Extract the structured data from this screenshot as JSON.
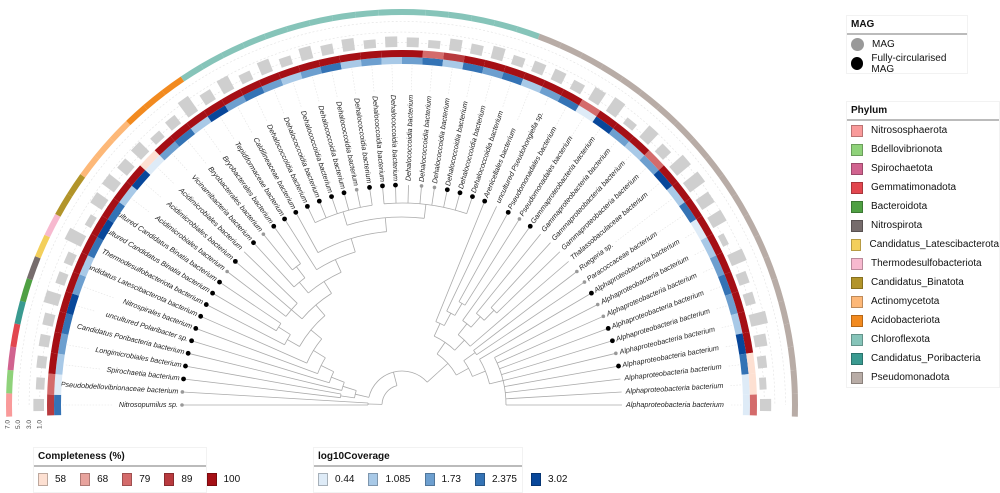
{
  "legends": {
    "mag": {
      "title": "MAG",
      "items": [
        {
          "label": "MAG",
          "color": "#999999"
        },
        {
          "label": "Fully-circularised MAG",
          "color": "#000000"
        }
      ]
    },
    "phylum": {
      "title": "Phylum",
      "items": [
        {
          "label": "Nitrososphaerota",
          "color": "#f99a9a"
        },
        {
          "label": "Bdellovibrionota",
          "color": "#8fd27a"
        },
        {
          "label": "Spirochaetota",
          "color": "#d1638f"
        },
        {
          "label": "Gemmatimonadota",
          "color": "#e2474f"
        },
        {
          "label": "Bacteroidota",
          "color": "#4fa043"
        },
        {
          "label": "Nitrospirota",
          "color": "#766c6c"
        },
        {
          "label": "Candidatus_Latescibacterota",
          "color": "#f3cf5b"
        },
        {
          "label": "Thermodesulfobacteriota",
          "color": "#f7b9cf"
        },
        {
          "label": "Candidatus_Binatota",
          "color": "#b2942a"
        },
        {
          "label": "Actinomycetota",
          "color": "#fdb878"
        },
        {
          "label": "Acidobacteriota",
          "color": "#f28a1f"
        },
        {
          "label": "Chloroflexota",
          "color": "#86c4b9"
        },
        {
          "label": "Candidatus_Poribacteria",
          "color": "#3a9a90"
        },
        {
          "label": "Pseudomonadota",
          "color": "#b8aca6"
        }
      ]
    },
    "completeness": {
      "title": "Completeness (%)",
      "items": [
        {
          "label": "58",
          "color": "#fde0d2"
        },
        {
          "label": "68",
          "color": "#e8a39d"
        },
        {
          "label": "79",
          "color": "#d46b6b"
        },
        {
          "label": "89",
          "color": "#b83a3e"
        },
        {
          "label": "100",
          "color": "#a50f15"
        }
      ]
    },
    "coverage": {
      "title": "log10Coverage",
      "items": [
        {
          "label": "0.44",
          "color": "#deebf7"
        },
        {
          "label": "1.085",
          "color": "#a8c9e7"
        },
        {
          "label": "1.73",
          "color": "#6d9fcf"
        },
        {
          "label": "2.375",
          "color": "#3473b5"
        },
        {
          "label": "3.02",
          "color": "#08479a"
        }
      ]
    }
  },
  "bar_scale_ticks": [
    "7.0",
    "5.0",
    "3.0",
    "1.0"
  ],
  "leaves": [
    {
      "name": "Nitrosopumilus sp.",
      "mag": "MAG",
      "phylum": "Nitrososphaerota",
      "completeness": 89,
      "coverage": 2.375,
      "bar": 2.2
    },
    {
      "name": "Pseudobdellovibrionaceae bacterium",
      "mag": "MAG",
      "phylum": "Bdellovibrionota",
      "completeness": 79,
      "coverage": 0.44,
      "bar": 1.8
    },
    {
      "name": "Spirochaetia bacterium",
      "mag": "Fully-circularised MAG",
      "phylum": "Spirochaetota",
      "completeness": 100,
      "coverage": 1.085,
      "bar": 2.0
    },
    {
      "name": "Longimicrobiales bacterium",
      "mag": "Fully-circularised MAG",
      "phylum": "Gemmatimonadota",
      "completeness": 100,
      "coverage": 1.73,
      "bar": 2.1
    },
    {
      "name": "Candidatus Poribacteria bacterium",
      "mag": "Fully-circularised MAG",
      "phylum": "Candidatus_Poribacteria",
      "completeness": 100,
      "coverage": 2.375,
      "bar": 2.2
    },
    {
      "name": "uncultured Polaribacter sp.",
      "mag": "Fully-circularised MAG",
      "phylum": "Bacteroidota",
      "completeness": 100,
      "coverage": 3.02,
      "bar": 3.0
    },
    {
      "name": "Nitrospirales bacterium",
      "mag": "Fully-circularised MAG",
      "phylum": "Nitrospirota",
      "completeness": 100,
      "coverage": 1.73,
      "bar": 2.0
    },
    {
      "name": "Candidatus Latescibacterota bacterium",
      "mag": "Fully-circularised MAG",
      "phylum": "Candidatus_Latescibacterota",
      "completeness": 100,
      "coverage": 1.085,
      "bar": 1.9
    },
    {
      "name": "Thermodesulfobacteriota bacterium",
      "mag": "Fully-circularised MAG",
      "phylum": "Thermodesulfobacteriota",
      "completeness": 100,
      "coverage": 2.375,
      "bar": 3.6
    },
    {
      "name": "uncultured Candidatus Binatia bacterium",
      "mag": "Fully-circularised MAG",
      "phylum": "Candidatus_Binatota",
      "completeness": 100,
      "coverage": 3.02,
      "bar": 1.5
    },
    {
      "name": "uncultured Candidatus Binatia bacterium",
      "mag": "Fully-circularised MAG",
      "phylum": "Candidatus_Binatota",
      "completeness": 100,
      "coverage": 2.375,
      "bar": 2.8
    },
    {
      "name": "Acidimicrobiales bacterium",
      "mag": "MAG",
      "phylum": "Actinomycetota",
      "completeness": 100,
      "coverage": 1.085,
      "bar": 3.0
    },
    {
      "name": "Acidimicrobiales bacterium",
      "mag": "Fully-circularised MAG",
      "phylum": "Actinomycetota",
      "completeness": 100,
      "coverage": 3.02,
      "bar": 2.6
    },
    {
      "name": "Acidimicrobiales bacterium",
      "mag": "",
      "phylum": "Actinomycetota",
      "completeness": 58,
      "coverage": 0.44,
      "bar": 2.8
    },
    {
      "name": "Vicinamibacteria bacterium",
      "mag": "Fully-circularised MAG",
      "phylum": "Acidobacteriota",
      "completeness": 100,
      "coverage": 1.73,
      "bar": 1.8
    },
    {
      "name": "Bryobacterales bacterium",
      "mag": "MAG",
      "phylum": "Acidobacteriota",
      "completeness": 100,
      "coverage": 2.375,
      "bar": 2.2
    },
    {
      "name": "Bryobacterales bacterium",
      "mag": "Fully-circularised MAG",
      "phylum": "Acidobacteriota",
      "completeness": 100,
      "coverage": 1.085,
      "bar": 3.6
    },
    {
      "name": "Tepidiformaceae bacterium",
      "mag": "Fully-circularised MAG",
      "phylum": "Chloroflexota",
      "completeness": 100,
      "coverage": 3.02,
      "bar": 2.4
    },
    {
      "name": "Caldilineaceae bacterium",
      "mag": "Fully-circularised MAG",
      "phylum": "Chloroflexota",
      "completeness": 100,
      "coverage": 1.73,
      "bar": 3.0
    },
    {
      "name": "Dehalococcoidia bacterium",
      "mag": "Fully-circularised MAG",
      "phylum": "Chloroflexota",
      "completeness": 100,
      "coverage": 2.375,
      "bar": 2.0
    },
    {
      "name": "Dehalococcoidia bacterium",
      "mag": "Fully-circularised MAG",
      "phylum": "Chloroflexota",
      "completeness": 100,
      "coverage": 1.73,
      "bar": 2.7
    },
    {
      "name": "Dehalococcoidia bacterium",
      "mag": "Fully-circularised MAG",
      "phylum": "Chloroflexota",
      "completeness": 100,
      "coverage": 1.085,
      "bar": 1.9
    },
    {
      "name": "Dehalococcoidia bacterium",
      "mag": "Fully-circularised MAG",
      "phylum": "Chloroflexota",
      "completeness": 100,
      "coverage": 1.73,
      "bar": 2.6
    },
    {
      "name": "Dehalococcoidia bacterium",
      "mag": "MAG",
      "phylum": "Chloroflexota",
      "completeness": 100,
      "coverage": 2.375,
      "bar": 2.1
    },
    {
      "name": "Dehalococcoidia bacterium",
      "mag": "Fully-circularised MAG",
      "phylum": "Chloroflexota",
      "completeness": 100,
      "coverage": 1.085,
      "bar": 2.5
    },
    {
      "name": "Dehalococcoidia bacterium",
      "mag": "Fully-circularised MAG",
      "phylum": "Chloroflexota",
      "completeness": 100,
      "coverage": 1.73,
      "bar": 1.8
    },
    {
      "name": "Dehalococcoidia bacterium",
      "mag": "Fully-circularised MAG",
      "phylum": "Chloroflexota",
      "completeness": 100,
      "coverage": 1.085,
      "bar": 2.2
    },
    {
      "name": "Dehalococcoidia bacterium",
      "mag": "",
      "phylum": "Chloroflexota",
      "completeness": 100,
      "coverage": 1.73,
      "bar": 2.0
    },
    {
      "name": "Dehalococcoidia bacterium",
      "mag": "MAG",
      "phylum": "Chloroflexota",
      "completeness": 79,
      "coverage": 2.375,
      "bar": 1.7
    },
    {
      "name": "Dehalococcoidia bacterium",
      "mag": "MAG",
      "phylum": "Chloroflexota",
      "completeness": 89,
      "coverage": 1.085,
      "bar": 2.4
    },
    {
      "name": "Dehalococcoidia bacterium",
      "mag": "Fully-circularised MAG",
      "phylum": "Chloroflexota",
      "completeness": 100,
      "coverage": 2.375,
      "bar": 2.1
    },
    {
      "name": "Dehalococcoidia bacterium",
      "mag": "Fully-circularised MAG",
      "phylum": "Chloroflexota",
      "completeness": 100,
      "coverage": 1.73,
      "bar": 2.6
    },
    {
      "name": "Dehalococcoidia bacterium",
      "mag": "Fully-circularised MAG",
      "phylum": "Chloroflexota",
      "completeness": 100,
      "coverage": 2.375,
      "bar": 2.0
    },
    {
      "name": "Arenicellales bacterium",
      "mag": "Fully-circularised MAG",
      "phylum": "Pseudomonadota",
      "completeness": 100,
      "coverage": 1.085,
      "bar": 2.3
    },
    {
      "name": "uncultured Pseudohongiella sp.",
      "mag": "",
      "phylum": "Pseudomonadota",
      "completeness": 100,
      "coverage": 1.73,
      "bar": 2.4
    },
    {
      "name": "Pseudomonadales bacterium",
      "mag": "Fully-circularised MAG",
      "phylum": "Pseudomonadota",
      "completeness": 100,
      "coverage": 2.375,
      "bar": 2.1
    },
    {
      "name": "Pseudomonadales bacterium",
      "mag": "MAG",
      "phylum": "Pseudomonadota",
      "completeness": 79,
      "coverage": 0.44,
      "bar": 2.9
    },
    {
      "name": "Gammaproteobacteria bacterium",
      "mag": "Fully-circularised MAG",
      "phylum": "Pseudomonadota",
      "completeness": 100,
      "coverage": 3.02,
      "bar": 3.3
    },
    {
      "name": "Gammaproteobacteria bacterium",
      "mag": "",
      "phylum": "Pseudomonadota",
      "completeness": 100,
      "coverage": 1.73,
      "bar": 1.6
    },
    {
      "name": "Gammaproteobacteria bacterium",
      "mag": "",
      "phylum": "Pseudomonadota",
      "completeness": 100,
      "coverage": 1.085,
      "bar": 3.1
    },
    {
      "name": "Gammaproteobacteria bacterium",
      "mag": "",
      "phylum": "Pseudomonadota",
      "completeness": 79,
      "coverage": 1.73,
      "bar": 2.3
    },
    {
      "name": "Thalassobaculaceae bacterium",
      "mag": "",
      "phylum": "Pseudomonadota",
      "completeness": 100,
      "coverage": 3.02,
      "bar": 3.6
    },
    {
      "name": "Ruegeria sp.",
      "mag": "MAG",
      "phylum": "Pseudomonadota",
      "completeness": 100,
      "coverage": 1.085,
      "bar": 3.7
    },
    {
      "name": "Paracoccaceae bacterium",
      "mag": "MAG",
      "phylum": "Pseudomonadota",
      "completeness": 100,
      "coverage": 2.375,
      "bar": 3.0
    },
    {
      "name": "Alphaproteobacteria bacterium",
      "mag": "Fully-circularised MAG",
      "phylum": "Pseudomonadota",
      "completeness": 100,
      "coverage": 0.44,
      "bar": 3.1
    },
    {
      "name": "Alphaproteobacteria bacterium",
      "mag": "MAG",
      "phylum": "Pseudomonadota",
      "completeness": 100,
      "coverage": 1.085,
      "bar": 1.4
    },
    {
      "name": "Alphaproteobacteria bacterium",
      "mag": "MAG",
      "phylum": "Pseudomonadota",
      "completeness": 100,
      "coverage": 1.73,
      "bar": 3.2
    },
    {
      "name": "Alphaproteobacteria bacterium",
      "mag": "Fully-circularised MAG",
      "phylum": "Pseudomonadota",
      "completeness": 100,
      "coverage": 2.375,
      "bar": 2.2
    },
    {
      "name": "Alphaproteobacteria bacterium",
      "mag": "Fully-circularised MAG",
      "phylum": "Pseudomonadota",
      "completeness": 100,
      "coverage": 1.73,
      "bar": 2.1
    },
    {
      "name": "Alphaproteobacteria bacterium",
      "mag": "MAG",
      "phylum": "Pseudomonadota",
      "completeness": 100,
      "coverage": 1.085,
      "bar": 3.4
    },
    {
      "name": "Alphaproteobacteria bacterium",
      "mag": "Fully-circularised MAG",
      "phylum": "Pseudomonadota",
      "completeness": 100,
      "coverage": 3.02,
      "bar": 2.5
    },
    {
      "name": "Alphaproteobacteria bacterium",
      "mag": "",
      "phylum": "Pseudomonadota",
      "completeness": 58,
      "coverage": 2.375,
      "bar": 1.9
    },
    {
      "name": "Alphaproteobacteria bacterium",
      "mag": "",
      "phylum": "Pseudomonadota",
      "completeness": 58,
      "coverage": 0.44,
      "bar": 1.5
    },
    {
      "name": "Alphaproteobacteria bacterium",
      "mag": "",
      "phylum": "Pseudomonadota",
      "completeness": 79,
      "coverage": 0.44,
      "bar": 2.3
    }
  ],
  "tree": [
    [
      0,
      1
    ],
    [
      [
        [
          2,
          3
        ],
        [
          4,
          [
            5,
            [
              6,
              [
                7,
                [
                  [
                    8,
                    [
                      9,
                      10
                    ]
                  ],
                  [
                    [
                      11,
                      12,
                      13
                    ],
                    [
                      [
                        14,
                        [
                          15,
                          16
                        ]
                      ],
                      [
                        17,
                        [
                          18,
                          [
                            [
                              19,
                              20,
                              21,
                              22,
                              23,
                              24
                            ],
                            [
                              25,
                              26,
                              27,
                              28,
                              29,
                              30,
                              31,
                              32
                            ]
                          ]
                        ]
                      ]
                    ]
                  ]
                ]
              ]
            ]
          ]
        ]
      ],
      [
        [
          [
            [
              33,
              [
                34,
                [
                  35,
                  36
                ]
              ]
            ],
            [
              [
                37,
                [
                  38,
                  [
                    39,
                    40
                  ]
                ]
              ],
              41
            ]
          ],
          [
            [
              42,
              43
            ],
            [
              44,
              [
                45,
                46,
                47,
                48,
                49,
                50,
                51,
                52,
                53
              ]
            ]
          ]
        ]
      ]
    ]
  ]
}
